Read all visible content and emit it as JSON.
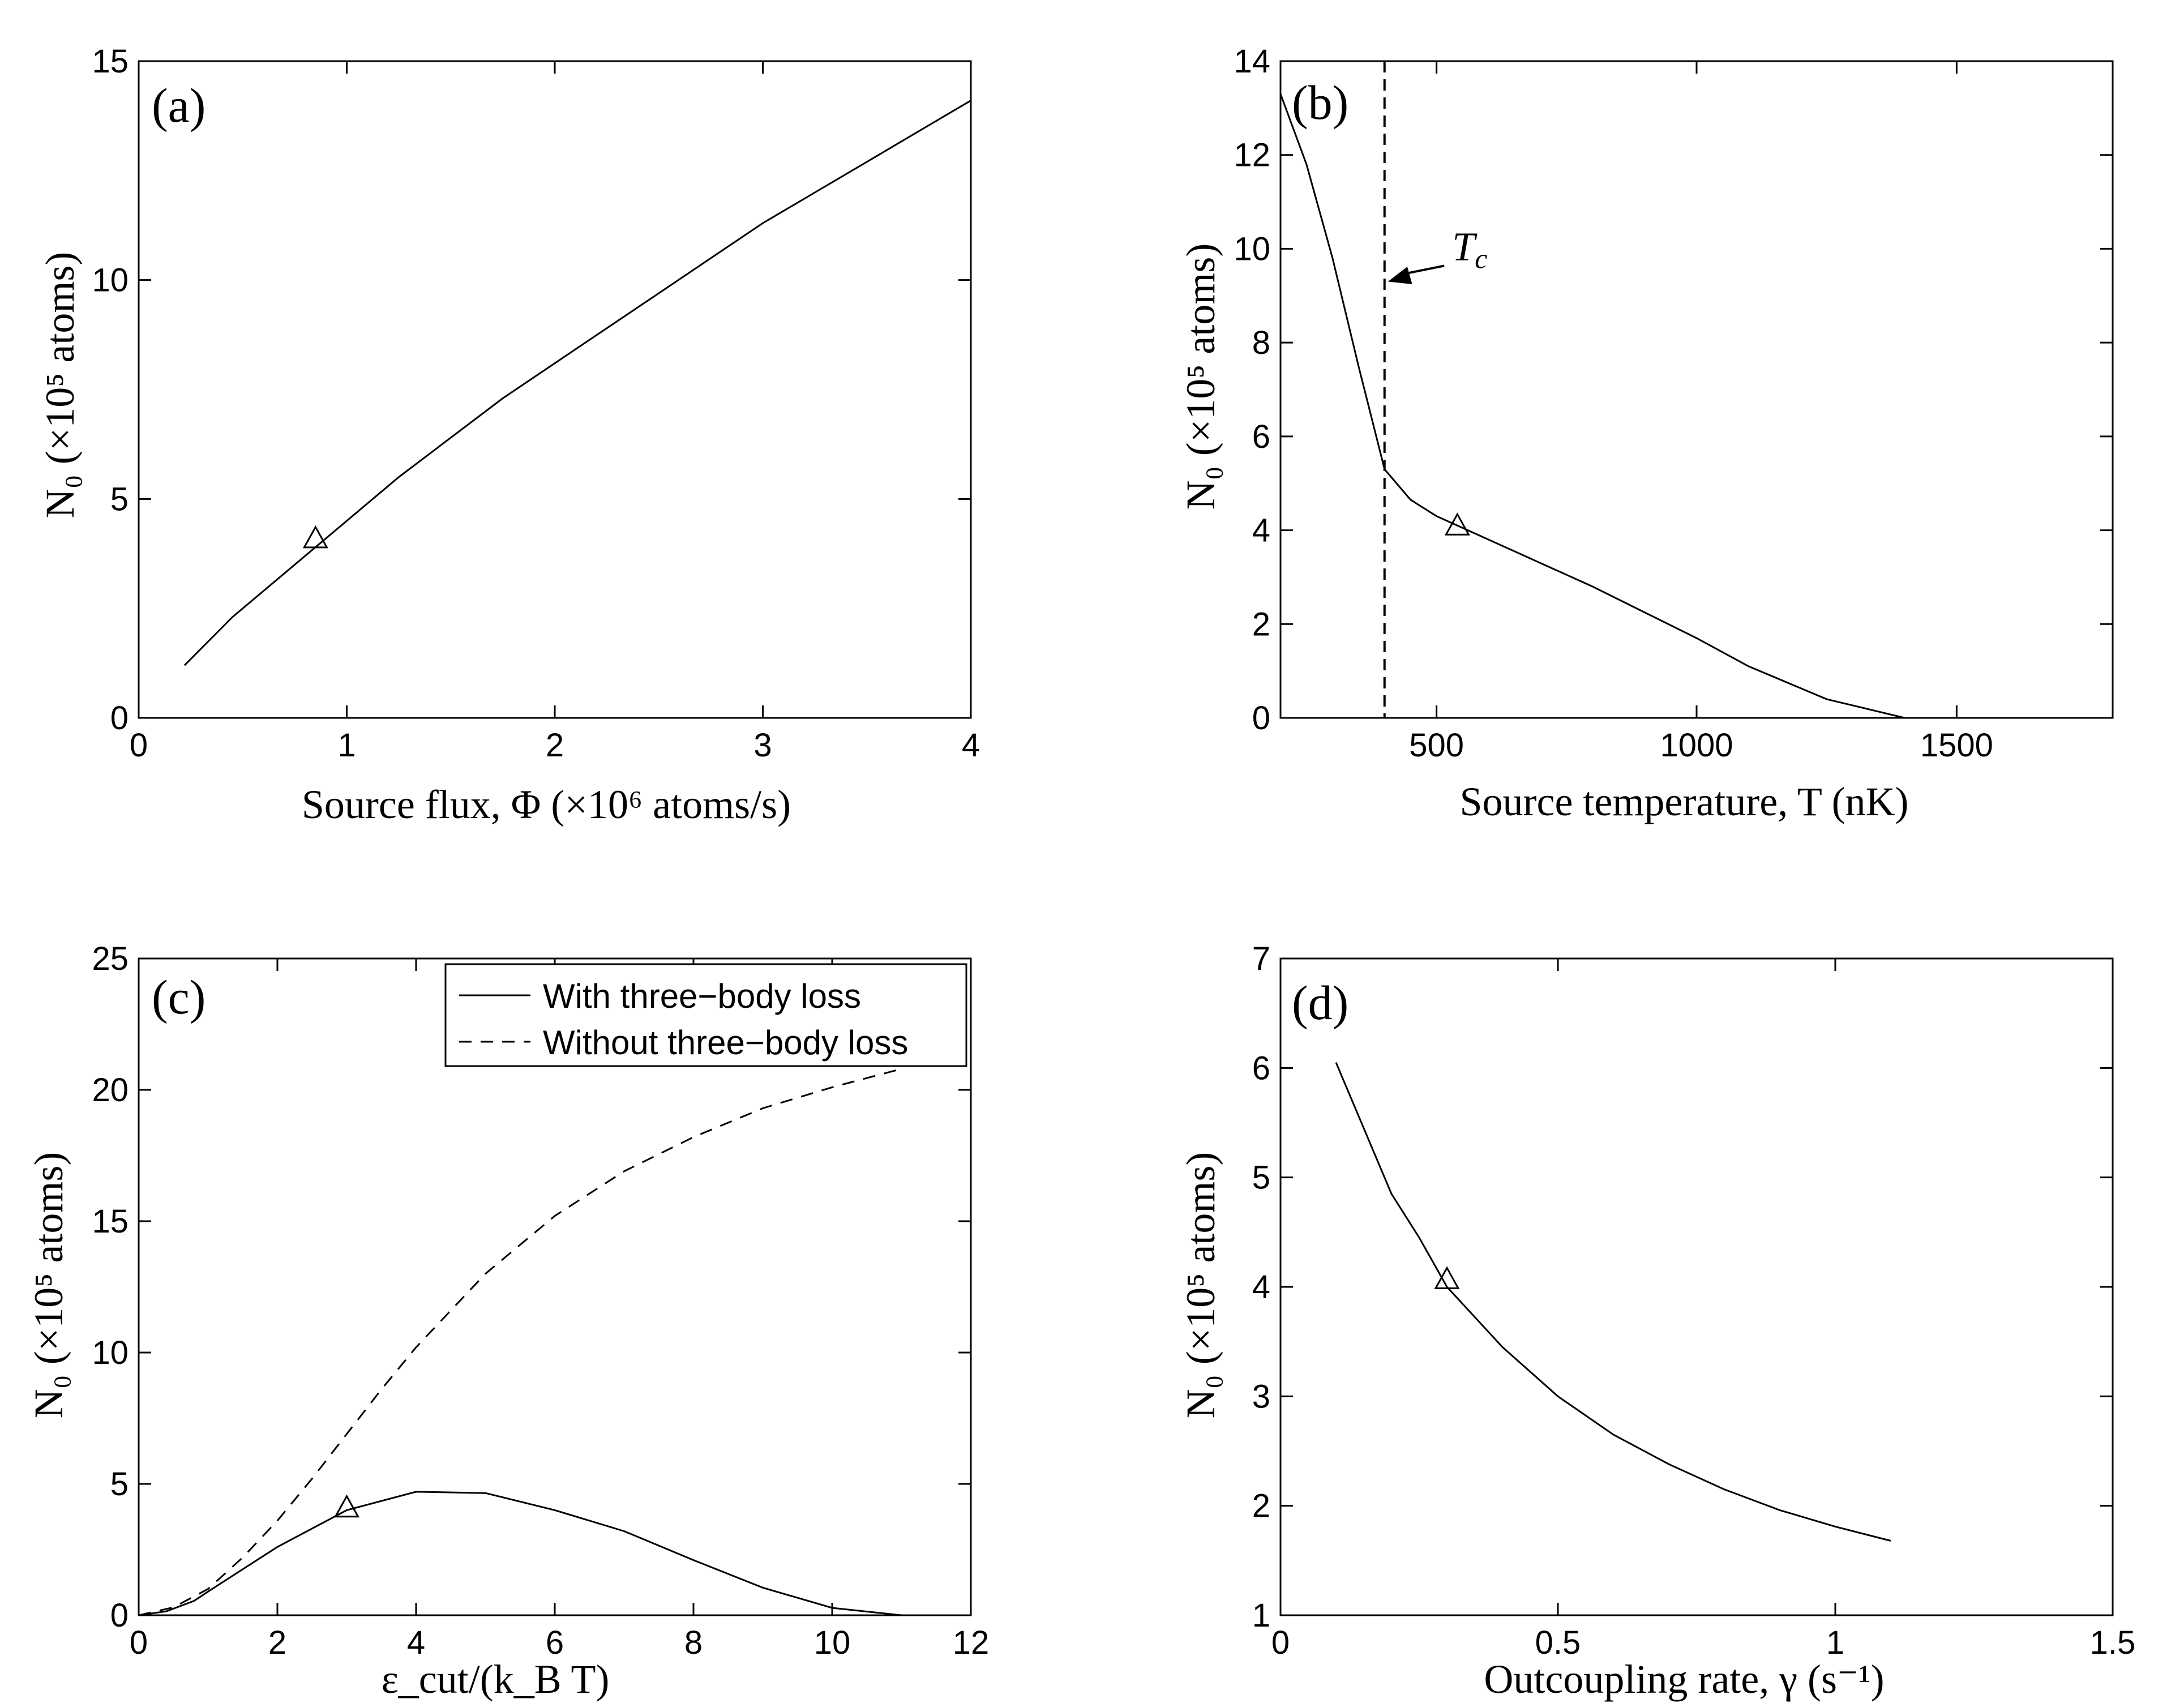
{
  "chart_data": [
    {
      "id": "a",
      "type": "line",
      "panel_label": "(a)",
      "xlabel": "Source flux, Φ (×10⁶ atoms/s)",
      "ylabel": "N₀ (×10⁵ atoms)",
      "xlim": [
        0,
        4
      ],
      "ylim": [
        0,
        15
      ],
      "xticks": [
        0,
        1,
        2,
        3,
        4
      ],
      "yticks": [
        0,
        5,
        10,
        15
      ],
      "grid": false,
      "series": [
        {
          "style": "solid",
          "x": [
            0.22,
            0.45,
            0.7,
            1.0,
            1.25,
            1.5,
            1.75,
            2.0,
            2.25,
            2.5,
            2.75,
            3.0,
            3.25,
            3.5,
            3.75,
            4.0
          ],
          "y": [
            1.2,
            2.3,
            3.3,
            4.5,
            5.5,
            6.4,
            7.3,
            8.1,
            8.9,
            9.7,
            10.5,
            11.3,
            12.0,
            12.7,
            13.4,
            14.1
          ]
        }
      ],
      "markers": [
        {
          "x": 0.85,
          "y": 4.1,
          "shape": "triangle"
        }
      ]
    },
    {
      "id": "b",
      "type": "line",
      "panel_label": "(b)",
      "xlabel": "Source temperature, T (nK)",
      "ylabel": "N₀ (×10⁵ atoms)",
      "xlim": [
        200,
        1800
      ],
      "ylim": [
        0,
        14
      ],
      "xticks": [
        500,
        1000,
        1500
      ],
      "yticks": [
        0,
        2,
        4,
        6,
        8,
        10,
        12,
        14
      ],
      "grid": false,
      "series": [
        {
          "style": "solid",
          "x": [
            200,
            250,
            300,
            350,
            400,
            450,
            500,
            550,
            600,
            700,
            800,
            900,
            1000,
            1100,
            1250,
            1400
          ],
          "y": [
            13.3,
            11.8,
            9.8,
            7.5,
            5.3,
            4.65,
            4.3,
            4.05,
            3.8,
            3.3,
            2.8,
            2.25,
            1.7,
            1.1,
            0.4,
            0.0
          ]
        }
      ],
      "vline": {
        "x": 400,
        "style": "dashed",
        "label": "T_c"
      },
      "annotation": {
        "text": "Tc",
        "text_x": 530,
        "text_y": 10.0,
        "arrow_to_x": 400,
        "arrow_to_y": 9.3
      },
      "markers": [
        {
          "x": 540,
          "y": 4.1,
          "shape": "triangle"
        }
      ]
    },
    {
      "id": "c",
      "type": "line",
      "panel_label": "(c)",
      "xlabel": "ε_cut/(k_B T)",
      "ylabel": "N₀ (×10⁵ atoms)",
      "xlim": [
        0,
        12
      ],
      "ylim": [
        0,
        25
      ],
      "xticks": [
        0,
        2,
        4,
        6,
        8,
        10,
        12
      ],
      "yticks": [
        0,
        5,
        10,
        15,
        20,
        25
      ],
      "grid": false,
      "legend_position": "top-right",
      "series": [
        {
          "name": "With three−body loss",
          "style": "solid",
          "x": [
            0,
            0.4,
            0.8,
            1,
            2,
            3,
            4,
            5,
            6,
            7,
            8,
            9,
            10,
            11
          ],
          "y": [
            0,
            0.15,
            0.55,
            0.9,
            2.6,
            4.0,
            4.7,
            4.65,
            4.0,
            3.2,
            2.1,
            1.05,
            0.28,
            0.0
          ]
        },
        {
          "name": "Without three−body loss",
          "style": "dashed",
          "x": [
            0,
            0.5,
            1,
            1.5,
            2,
            2.5,
            3,
            3.5,
            4,
            5,
            6,
            7,
            8,
            9,
            10,
            11
          ],
          "y": [
            0,
            0.3,
            1.0,
            2.2,
            3.6,
            5.2,
            6.9,
            8.6,
            10.2,
            13.0,
            15.2,
            16.9,
            18.2,
            19.3,
            20.1,
            20.8
          ]
        }
      ],
      "markers": [
        {
          "x": 3.0,
          "y": 4.1,
          "shape": "triangle"
        }
      ]
    },
    {
      "id": "d",
      "type": "line",
      "panel_label": "(d)",
      "xlabel": "Outcoupling rate, γ (s⁻¹)",
      "ylabel": "N₀ (×10⁵ atoms)",
      "xlim": [
        0,
        1.5
      ],
      "ylim": [
        1,
        7
      ],
      "xticks": [
        0,
        0.5,
        1,
        1.5
      ],
      "yticks": [
        1,
        2,
        3,
        4,
        5,
        6,
        7
      ],
      "grid": false,
      "series": [
        {
          "style": "solid",
          "x": [
            0.1,
            0.15,
            0.2,
            0.25,
            0.3,
            0.4,
            0.5,
            0.6,
            0.7,
            0.8,
            0.9,
            1.0,
            1.1
          ],
          "y": [
            6.05,
            5.45,
            4.85,
            4.45,
            4.0,
            3.45,
            3.0,
            2.65,
            2.38,
            2.15,
            1.96,
            1.81,
            1.68
          ]
        }
      ],
      "markers": [
        {
          "x": 0.3,
          "y": 4.07,
          "shape": "triangle"
        }
      ]
    }
  ]
}
